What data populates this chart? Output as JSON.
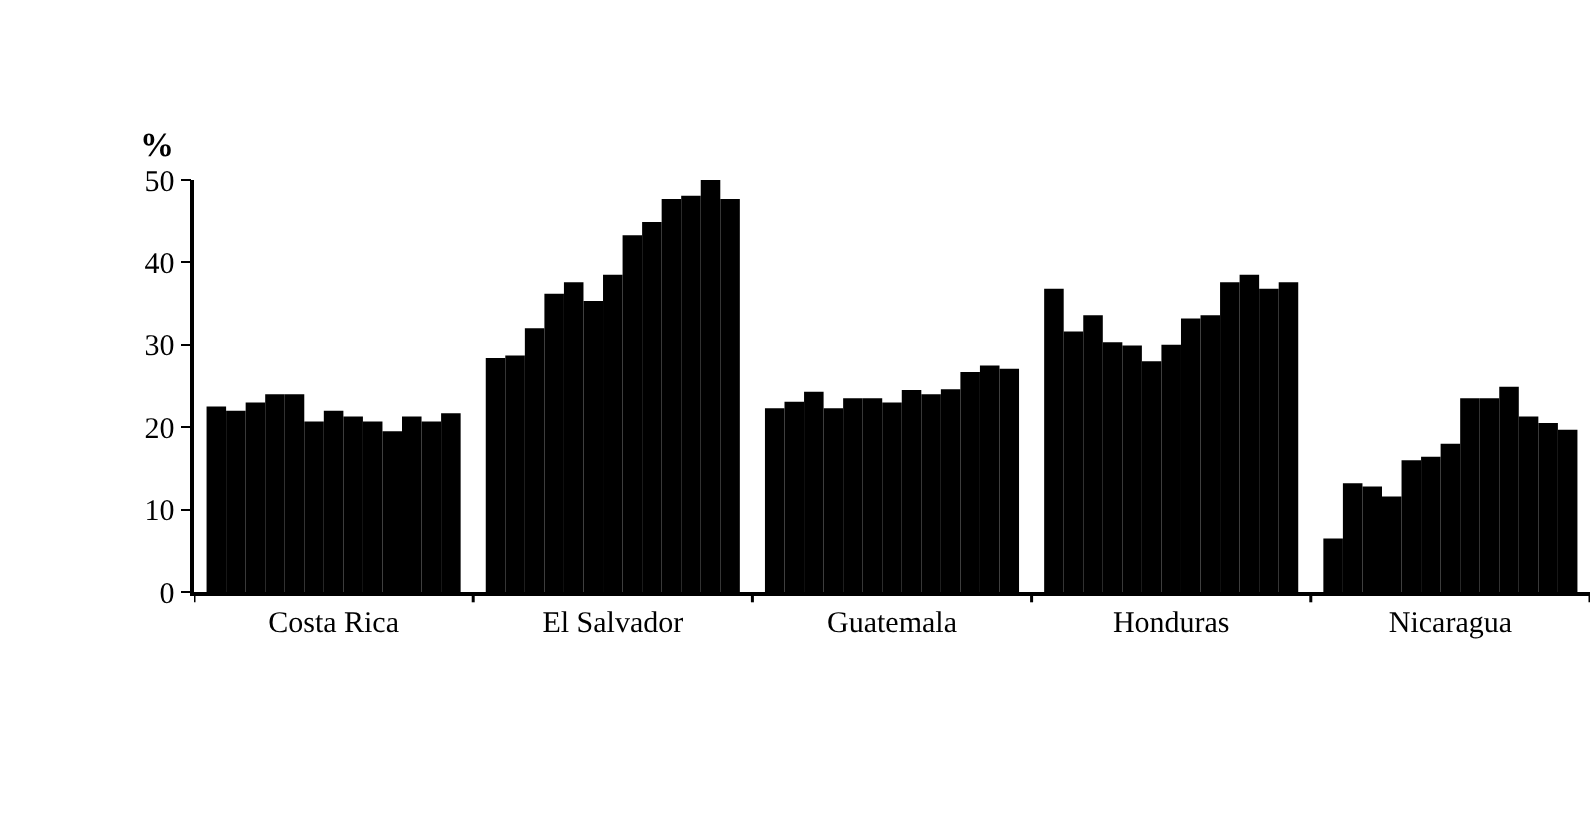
{
  "chart_data": {
    "type": "bar",
    "ylabel": "%",
    "categories": [
      "Costa Rica",
      "El Salvador",
      "Guatemala",
      "Honduras",
      "Nicaragua"
    ],
    "series": [
      {
        "color": "#000000",
        "values": [
          22.5,
          28.4,
          22.3,
          36.8,
          6.5
        ]
      },
      {
        "color": "#000000",
        "values": [
          22,
          28.7,
          23.1,
          31.6,
          13.2
        ]
      },
      {
        "color": "#000000",
        "values": [
          23,
          32,
          24.3,
          33.6,
          12.8
        ]
      },
      {
        "color": "#000000",
        "values": [
          24,
          36.2,
          22.3,
          30.3,
          11.6
        ]
      },
      {
        "color": "#000000",
        "values": [
          24,
          37.6,
          23.5,
          29.9,
          16
        ]
      },
      {
        "color": "#000000",
        "values": [
          20.7,
          35.3,
          23.5,
          28,
          16.4
        ]
      },
      {
        "color": "#000000",
        "values": [
          22,
          38.5,
          23,
          30,
          18
        ]
      },
      {
        "color": "#000000",
        "values": [
          21.3,
          43.3,
          24.5,
          33.2,
          23.5
        ]
      },
      {
        "color": "#000000",
        "values": [
          20.7,
          44.9,
          24,
          33.6,
          23.5
        ]
      },
      {
        "color": "#000000",
        "values": [
          19.5,
          47.7,
          24.6,
          37.6,
          24.9
        ]
      },
      {
        "color": "#000000",
        "values": [
          21.3,
          48.1,
          26.7,
          38.5,
          21.3
        ]
      },
      {
        "color": "#000000",
        "values": [
          20.7,
          50,
          27.5,
          36.8,
          20.5
        ]
      },
      {
        "color": "#000000",
        "values": [
          21.7,
          47.7,
          27.1,
          37.6,
          19.7
        ]
      }
    ],
    "ylim": [
      0,
      50
    ],
    "yticks": [
      0,
      10,
      20,
      30,
      40,
      50
    ],
    "grid": false
  }
}
